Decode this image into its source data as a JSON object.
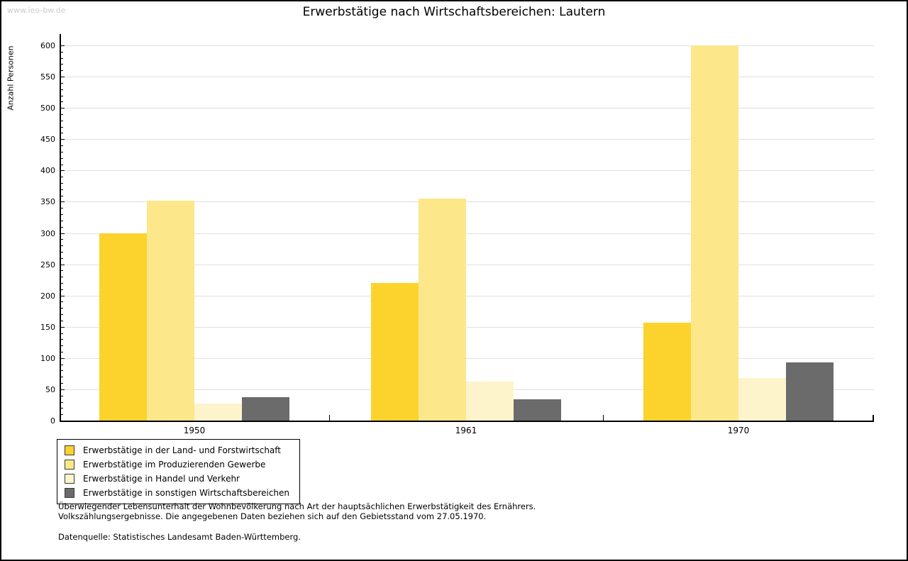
{
  "watermark": "www.leo-bw.de",
  "title": "Erwerbstätige nach Wirtschaftsbereichen: Lautern",
  "chart_data": {
    "type": "bar",
    "title": "Erwerbstätige nach Wirtschaftsbereichen: Lautern",
    "xlabel": "",
    "ylabel": "Anzahl Personen",
    "ylim": [
      0,
      600
    ],
    "ytick_step": 50,
    "yminor_tick_step": 10,
    "grid": true,
    "gridline_color": "#e0e0e0",
    "legend_position": "bottom-left",
    "categories": [
      "1950",
      "1961",
      "1970"
    ],
    "series": [
      {
        "name": "Erwerbstätige in der Land- und Forstwirtschaft",
        "color": "#FCD22D",
        "values": [
          300,
          220,
          157
        ]
      },
      {
        "name": "Erwerbstätige im Produzierenden Gewerbe",
        "color": "#FCE78A",
        "values": [
          352,
          355,
          600
        ]
      },
      {
        "name": "Erwerbstätige in Handel und Verkehr",
        "color": "#FDF4CB",
        "values": [
          27,
          62,
          68
        ]
      },
      {
        "name": "Erwerbstätige in sonstigen Wirtschaftsbereichen",
        "color": "#6B6B6B",
        "values": [
          37,
          34,
          93
        ]
      }
    ]
  },
  "footnotes": {
    "line1": "Überwiegender Lebensunterhalt der Wohnbevölkerung nach Art der hauptsächlichen Erwerbstätigkeit des Ernährers.",
    "line2": "Volkszählungsergebnisse. Die angegebenen Daten beziehen sich auf den Gebietsstand vom 27.05.1970.",
    "source": "Datenquelle: Statistisches Landesamt Baden-Württemberg."
  }
}
